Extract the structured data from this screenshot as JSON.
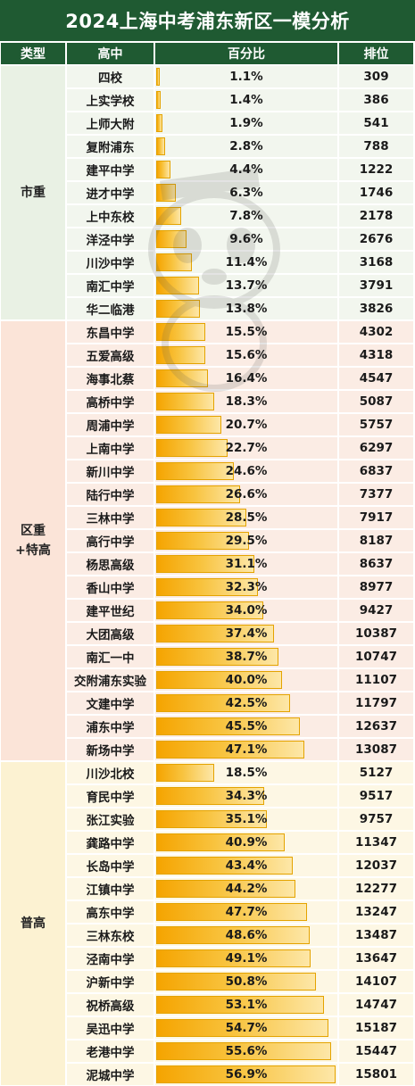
{
  "title": "2024上海中考浦东新区一模分析",
  "headers": {
    "type": "类型",
    "school": "高中",
    "percent": "百分比",
    "rank": "排位"
  },
  "colors": {
    "header_bg": "#1f5a32",
    "header_text": "#ffffff",
    "bar_gradient_start": "#f5a400",
    "bar_gradient_end": "#fde7a8",
    "bar_border": "#e4a300",
    "group_shizhong": "#e9f1e4",
    "group_quzhong": "#fbe4d8",
    "group_putong": "#fcf2d2",
    "row_alt_green": "#f2f6ee",
    "row_alt_pink": "#fbece4",
    "row_alt_yellow": "#fdf7e4"
  },
  "icons": {
    "watermark": "panda-mascot-watermark-icon"
  },
  "groups": [
    {
      "type": "市重",
      "rows": [
        {
          "school": "四校",
          "percent": "1.1%",
          "value": 1.1,
          "rank": "309"
        },
        {
          "school": "上实学校",
          "percent": "1.4%",
          "value": 1.4,
          "rank": "386"
        },
        {
          "school": "上师大附",
          "percent": "1.9%",
          "value": 1.9,
          "rank": "541"
        },
        {
          "school": "复附浦东",
          "percent": "2.8%",
          "value": 2.8,
          "rank": "788"
        },
        {
          "school": "建平中学",
          "percent": "4.4%",
          "value": 4.4,
          "rank": "1222"
        },
        {
          "school": "进才中学",
          "percent": "6.3%",
          "value": 6.3,
          "rank": "1746"
        },
        {
          "school": "上中东校",
          "percent": "7.8%",
          "value": 7.8,
          "rank": "2178"
        },
        {
          "school": "洋泾中学",
          "percent": "9.6%",
          "value": 9.6,
          "rank": "2676"
        },
        {
          "school": "川沙中学",
          "percent": "11.4%",
          "value": 11.4,
          "rank": "3168"
        },
        {
          "school": "南汇中学",
          "percent": "13.7%",
          "value": 13.7,
          "rank": "3791"
        },
        {
          "school": "华二临港",
          "percent": "13.8%",
          "value": 13.8,
          "rank": "3826"
        }
      ]
    },
    {
      "type": "区重\n+特高",
      "rows": [
        {
          "school": "东昌中学",
          "percent": "15.5%",
          "value": 15.5,
          "rank": "4302"
        },
        {
          "school": "五爱高级",
          "percent": "15.6%",
          "value": 15.6,
          "rank": "4318"
        },
        {
          "school": "海事北蔡",
          "percent": "16.4%",
          "value": 16.4,
          "rank": "4547"
        },
        {
          "school": "高桥中学",
          "percent": "18.3%",
          "value": 18.3,
          "rank": "5087"
        },
        {
          "school": "周浦中学",
          "percent": "20.7%",
          "value": 20.7,
          "rank": "5757"
        },
        {
          "school": "上南中学",
          "percent": "22.7%",
          "value": 22.7,
          "rank": "6297"
        },
        {
          "school": "新川中学",
          "percent": "24.6%",
          "value": 24.6,
          "rank": "6837"
        },
        {
          "school": "陆行中学",
          "percent": "26.6%",
          "value": 26.6,
          "rank": "7377"
        },
        {
          "school": "三林中学",
          "percent": "28.5%",
          "value": 28.5,
          "rank": "7917"
        },
        {
          "school": "高行中学",
          "percent": "29.5%",
          "value": 29.5,
          "rank": "8187"
        },
        {
          "school": "杨思高级",
          "percent": "31.1%",
          "value": 31.1,
          "rank": "8637"
        },
        {
          "school": "香山中学",
          "percent": "32.3%",
          "value": 32.3,
          "rank": "8977"
        },
        {
          "school": "建平世纪",
          "percent": "34.0%",
          "value": 34.0,
          "rank": "9427"
        },
        {
          "school": "大团高级",
          "percent": "37.4%",
          "value": 37.4,
          "rank": "10387"
        },
        {
          "school": "南汇一中",
          "percent": "38.7%",
          "value": 38.7,
          "rank": "10747"
        },
        {
          "school": "交附浦东实验",
          "percent": "40.0%",
          "value": 40.0,
          "rank": "11107"
        },
        {
          "school": "文建中学",
          "percent": "42.5%",
          "value": 42.5,
          "rank": "11797"
        },
        {
          "school": "浦东中学",
          "percent": "45.5%",
          "value": 45.5,
          "rank": "12637"
        },
        {
          "school": "新场中学",
          "percent": "47.1%",
          "value": 47.1,
          "rank": "13087"
        }
      ]
    },
    {
      "type": "普高",
      "rows": [
        {
          "school": "川沙北校",
          "percent": "18.5%",
          "value": 18.5,
          "rank": "5127"
        },
        {
          "school": "育民中学",
          "percent": "34.3%",
          "value": 34.3,
          "rank": "9517"
        },
        {
          "school": "张江实验",
          "percent": "35.1%",
          "value": 35.1,
          "rank": "9757"
        },
        {
          "school": "龚路中学",
          "percent": "40.9%",
          "value": 40.9,
          "rank": "11347"
        },
        {
          "school": "长岛中学",
          "percent": "43.4%",
          "value": 43.4,
          "rank": "12037"
        },
        {
          "school": "江镇中学",
          "percent": "44.2%",
          "value": 44.2,
          "rank": "12277"
        },
        {
          "school": "高东中学",
          "percent": "47.7%",
          "value": 47.7,
          "rank": "13247"
        },
        {
          "school": "三林东校",
          "percent": "48.6%",
          "value": 48.6,
          "rank": "13487"
        },
        {
          "school": "泾南中学",
          "percent": "49.1%",
          "value": 49.1,
          "rank": "13647"
        },
        {
          "school": "沪新中学",
          "percent": "50.8%",
          "value": 50.8,
          "rank": "14107"
        },
        {
          "school": "祝桥高级",
          "percent": "53.1%",
          "value": 53.1,
          "rank": "14747"
        },
        {
          "school": "吴迅中学",
          "percent": "54.7%",
          "value": 54.7,
          "rank": "15187"
        },
        {
          "school": "老港中学",
          "percent": "55.6%",
          "value": 55.6,
          "rank": "15447"
        },
        {
          "school": "泥城中学",
          "percent": "56.9%",
          "value": 56.9,
          "rank": "15801"
        }
      ]
    }
  ],
  "bar_scale_max": 56.9
}
